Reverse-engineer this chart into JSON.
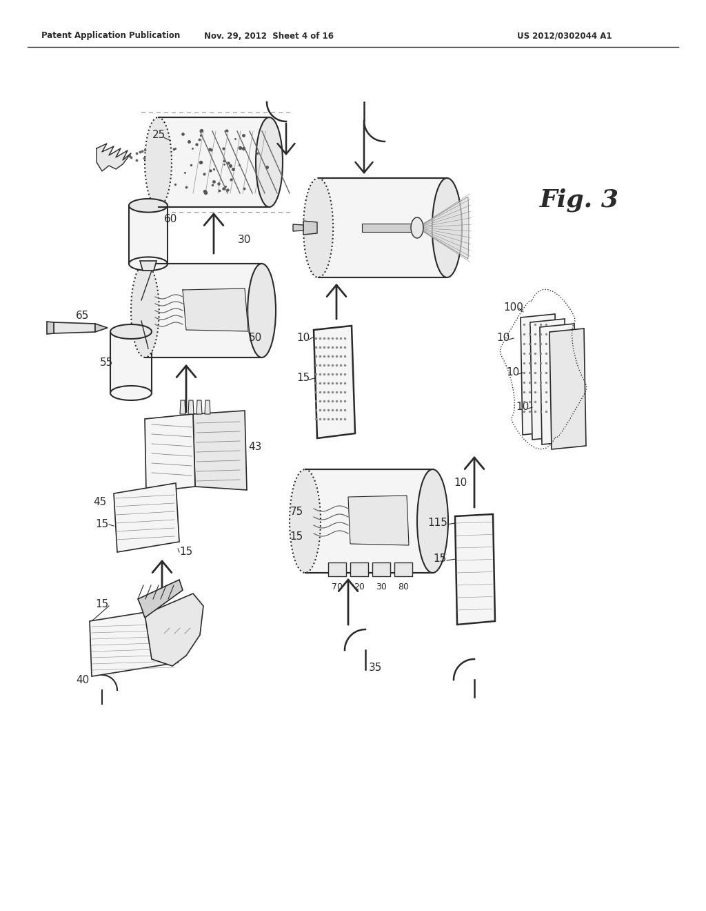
{
  "header_left": "Patent Application Publication",
  "header_mid": "Nov. 29, 2012  Sheet 4 of 16",
  "header_right": "US 2012/0302044 A1",
  "fig_label": "Fig. 3",
  "bg_color": "#ffffff",
  "line_color": "#2a2a2a",
  "gray_color": "#888888",
  "light_gray": "#cccccc",
  "fill_light": "#f5f5f5",
  "fill_mid": "#e8e8e8",
  "fill_dark": "#d0d0d0"
}
